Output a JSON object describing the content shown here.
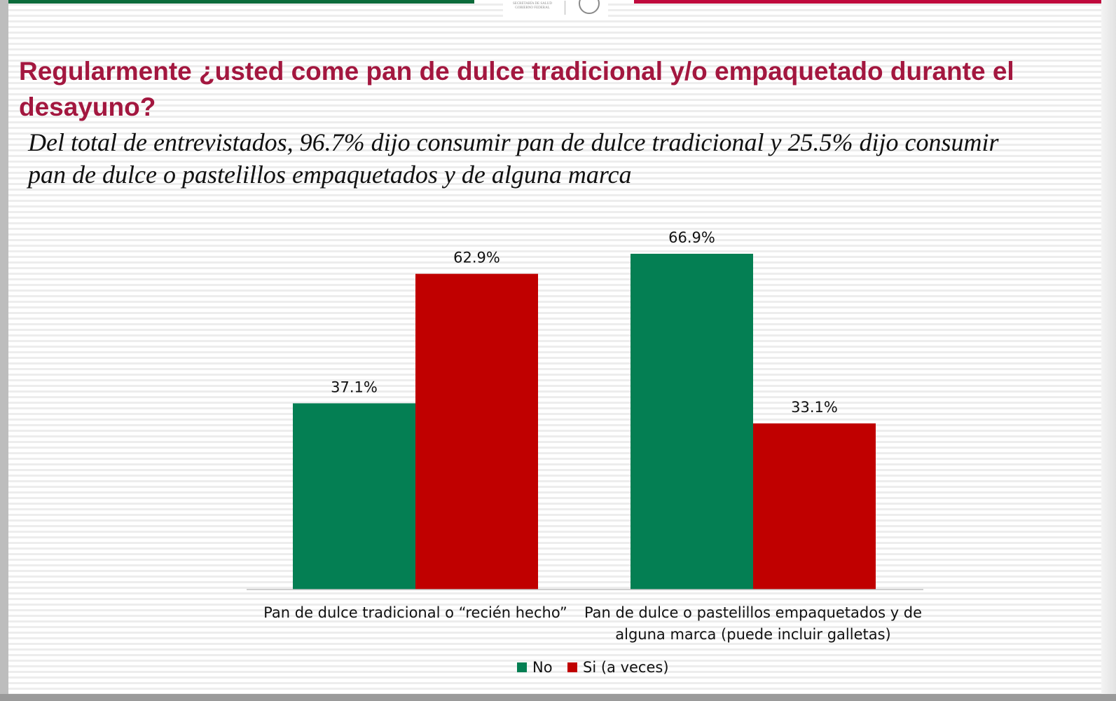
{
  "title": "Regularmente  ¿usted come pan de dulce tradicional y/o empaquetado durante el desayuno?",
  "subtitle": "Del total de entrevistados, 96.7%  dijo consumir pan de dulce tradicional y 25.5% dijo consumir pan de dulce o pastelillos empaquetados y de alguna marca",
  "colors": {
    "no": "#047f53",
    "si": "#c00000",
    "title": "#a3173f"
  },
  "chart_data": {
    "type": "bar",
    "categories": [
      [
        "Pan de dulce tradicional o “recién hecho”"
      ],
      [
        "Pan de dulce o pastelillos empaquetados y de",
        "alguna marca (puede incluir galletas)"
      ]
    ],
    "series": [
      {
        "name": "No",
        "values": [
          37.1,
          66.9
        ],
        "labels": [
          "37.1%",
          "66.9%"
        ],
        "color": "#047f53"
      },
      {
        "name": "Si (a veces)",
        "values": [
          62.9,
          33.1
        ],
        "labels": [
          "62.9%",
          "33.1%"
        ],
        "color": "#c00000"
      }
    ],
    "unit": "%",
    "ylim": [
      0,
      70
    ],
    "grid": false,
    "legend": "bottom"
  }
}
